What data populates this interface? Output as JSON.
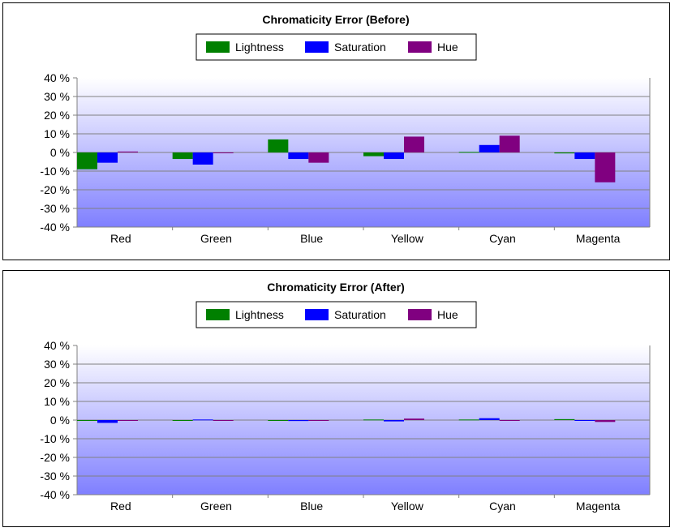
{
  "chart_data": [
    {
      "type": "bar",
      "title": "Chromaticity Error (Before)",
      "categories": [
        "Red",
        "Green",
        "Blue",
        "Yellow",
        "Cyan",
        "Magenta"
      ],
      "series": [
        {
          "name": "Lightness",
          "color": "#008000",
          "values": [
            -9,
            -3.5,
            7,
            -2,
            0.3,
            -0.5
          ]
        },
        {
          "name": "Saturation",
          "color": "#0000FF",
          "values": [
            -5.5,
            -6.5,
            -3.5,
            -3.5,
            4,
            -3.5
          ]
        },
        {
          "name": "Hue",
          "color": "#800080",
          "values": [
            0.5,
            -0.3,
            -5.5,
            8.5,
            9,
            -16
          ]
        }
      ],
      "ylim": [
        -40,
        40
      ],
      "yticks": [
        "40 %",
        "30 %",
        "20 %",
        "10 %",
        "0 %",
        "-10 %",
        "-20 %",
        "-30 %",
        "-40 %"
      ],
      "tick_values": [
        40,
        30,
        20,
        10,
        0,
        -10,
        -20,
        -30,
        -40
      ],
      "legend_position": "top-center"
    },
    {
      "type": "bar",
      "title": "Chromaticity Error (After)",
      "categories": [
        "Red",
        "Green",
        "Blue",
        "Yellow",
        "Cyan",
        "Magenta"
      ],
      "series": [
        {
          "name": "Lightness",
          "color": "#008000",
          "values": [
            -0.3,
            -0.3,
            -0.3,
            0.3,
            0.3,
            0.5
          ]
        },
        {
          "name": "Saturation",
          "color": "#0000FF",
          "values": [
            -1.5,
            0.3,
            -0.5,
            -0.7,
            1,
            -0.3
          ]
        },
        {
          "name": "Hue",
          "color": "#800080",
          "values": [
            -0.3,
            -0.3,
            -0.3,
            0.8,
            -0.3,
            -1
          ]
        }
      ],
      "ylim": [
        -40,
        40
      ],
      "yticks": [
        "40 %",
        "30 %",
        "20 %",
        "10 %",
        "0 %",
        "-10 %",
        "-20 %",
        "-30 %",
        "-40 %"
      ],
      "tick_values": [
        40,
        30,
        20,
        10,
        0,
        -10,
        -20,
        -30,
        -40
      ],
      "legend_position": "top-center"
    }
  ]
}
